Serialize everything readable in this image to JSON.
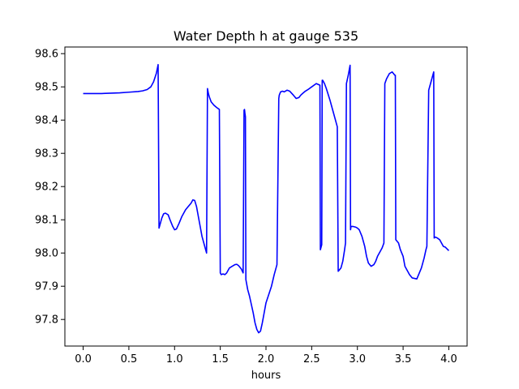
{
  "chart_data": {
    "type": "line",
    "title": "Water Depth h at gauge 535",
    "xlabel": "hours",
    "ylabel": "",
    "xlim": [
      -0.2,
      4.2
    ],
    "ylim": [
      97.72,
      98.62
    ],
    "grid": false,
    "xticks": [
      0.0,
      0.5,
      1.0,
      1.5,
      2.0,
      2.5,
      3.0,
      3.5,
      4.0
    ],
    "xtick_labels": [
      "0.0",
      "0.5",
      "1.0",
      "1.5",
      "2.0",
      "2.5",
      "3.0",
      "3.5",
      "4.0"
    ],
    "yticks": [
      97.8,
      97.9,
      98.0,
      98.1,
      98.2,
      98.3,
      98.4,
      98.5,
      98.6
    ],
    "ytick_labels": [
      "97.8",
      "97.9",
      "98.0",
      "98.1",
      "98.2",
      "98.3",
      "98.4",
      "98.5",
      "98.6"
    ],
    "series": [
      {
        "color": "#0000ff",
        "x": [
          0.0,
          0.2,
          0.4,
          0.5,
          0.6,
          0.65,
          0.7,
          0.74,
          0.77,
          0.8,
          0.82,
          0.83,
          0.84,
          0.86,
          0.88,
          0.9,
          0.93,
          0.95,
          0.98,
          1.0,
          1.02,
          1.05,
          1.08,
          1.1,
          1.12,
          1.15,
          1.18,
          1.2,
          1.22,
          1.24,
          1.26,
          1.28,
          1.3,
          1.33,
          1.35,
          1.36,
          1.37,
          1.38,
          1.4,
          1.43,
          1.46,
          1.49,
          1.5,
          1.51,
          1.53,
          1.55,
          1.57,
          1.6,
          1.63,
          1.66,
          1.68,
          1.7,
          1.73,
          1.75,
          1.76,
          1.765,
          1.77,
          1.775,
          1.78,
          1.8,
          1.82,
          1.84,
          1.86,
          1.88,
          1.9,
          1.92,
          1.94,
          1.96,
          1.98,
          2.0,
          2.03,
          2.06,
          2.09,
          2.12,
          2.14,
          2.145,
          2.16,
          2.18,
          2.2,
          2.23,
          2.26,
          2.3,
          2.33,
          2.36,
          2.38,
          2.4,
          2.43,
          2.46,
          2.5,
          2.55,
          2.59,
          2.595,
          2.6,
          2.61,
          2.615,
          2.62,
          2.64,
          2.66,
          2.7,
          2.74,
          2.78,
          2.79,
          2.8,
          2.82,
          2.84,
          2.86,
          2.87,
          2.88,
          2.9,
          2.92,
          2.925,
          2.93,
          2.95,
          2.98,
          3.0,
          3.02,
          3.05,
          3.08,
          3.1,
          3.12,
          3.15,
          3.18,
          3.2,
          3.22,
          3.25,
          3.27,
          3.29,
          3.3,
          3.32,
          3.35,
          3.38,
          3.41,
          3.415,
          3.42,
          3.45,
          3.47,
          3.5,
          3.52,
          3.55,
          3.57,
          3.6,
          3.65,
          3.7,
          3.73,
          3.75,
          3.76,
          3.78,
          3.8,
          3.82,
          3.835,
          3.84,
          3.85,
          3.87,
          3.9,
          3.92,
          3.94,
          3.96,
          4.0
        ],
        "y": [
          98.48,
          98.48,
          98.482,
          98.484,
          98.486,
          98.488,
          98.492,
          98.5,
          98.515,
          98.54,
          98.567,
          98.075,
          98.085,
          98.105,
          98.118,
          98.12,
          98.115,
          98.1,
          98.08,
          98.07,
          98.072,
          98.09,
          98.11,
          98.12,
          98.13,
          98.14,
          98.15,
          98.16,
          98.158,
          98.14,
          98.11,
          98.08,
          98.05,
          98.02,
          98.0,
          98.495,
          98.48,
          98.47,
          98.455,
          98.445,
          98.438,
          98.432,
          97.94,
          97.935,
          97.937,
          97.935,
          97.94,
          97.955,
          97.96,
          97.965,
          97.966,
          97.962,
          97.952,
          97.94,
          98.43,
          98.432,
          98.42,
          98.41,
          97.92,
          97.89,
          97.87,
          97.845,
          97.82,
          97.79,
          97.77,
          97.76,
          97.765,
          97.79,
          97.82,
          97.85,
          97.875,
          97.9,
          97.935,
          97.965,
          98.465,
          98.475,
          98.485,
          98.487,
          98.485,
          98.49,
          98.487,
          98.475,
          98.465,
          98.468,
          98.475,
          98.48,
          98.487,
          98.492,
          98.5,
          98.51,
          98.505,
          98.01,
          98.015,
          98.025,
          98.52,
          98.52,
          98.51,
          98.495,
          98.46,
          98.42,
          98.38,
          97.945,
          97.948,
          97.955,
          97.975,
          98.01,
          98.03,
          98.51,
          98.535,
          98.565,
          98.07,
          98.08,
          98.08,
          98.078,
          98.075,
          98.07,
          98.05,
          98.02,
          97.99,
          97.97,
          97.96,
          97.965,
          97.975,
          97.99,
          98.005,
          98.015,
          98.03,
          98.51,
          98.525,
          98.54,
          98.545,
          98.535,
          98.535,
          98.04,
          98.03,
          98.01,
          97.99,
          97.96,
          97.945,
          97.935,
          97.925,
          97.922,
          97.955,
          97.985,
          98.01,
          98.02,
          98.49,
          98.51,
          98.53,
          98.545,
          98.045,
          98.048,
          98.046,
          98.04,
          98.03,
          98.02,
          98.018,
          98.007
        ]
      }
    ]
  }
}
